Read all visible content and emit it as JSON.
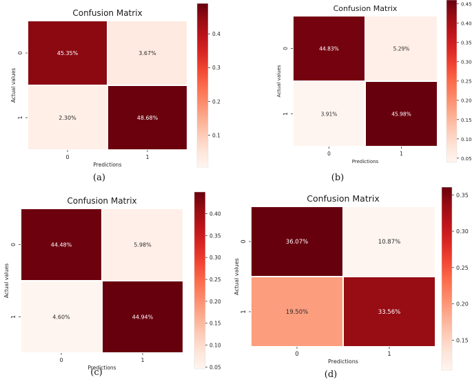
{
  "figure": {
    "caption_labels": [
      "(a)",
      "(b)",
      "(c)",
      "(d)"
    ]
  },
  "chart_data": [
    {
      "type": "heatmap",
      "title": "Confusion Matrix",
      "xlabel": "Predictions",
      "ylabel": "Actual values",
      "x_categories": [
        "0",
        "1"
      ],
      "y_categories": [
        "0",
        "1"
      ],
      "values": [
        [
          0.4535,
          0.0367
        ],
        [
          0.023,
          0.4868
        ]
      ],
      "cell_labels": [
        [
          "45.35%",
          "3.67%"
        ],
        [
          "2.30%",
          "48.68%"
        ]
      ],
      "colorbar": {
        "ticks": [
          0.1,
          0.2,
          0.3,
          0.4
        ],
        "tick_labels": [
          "0.1",
          "0.2",
          "0.3",
          "0.4"
        ],
        "range": [
          0.005,
          0.49
        ]
      },
      "colormap": "Reds",
      "caption": "(a)"
    },
    {
      "type": "heatmap",
      "title": "Confusion Matrix",
      "xlabel": "Predictions",
      "ylabel": "Actual values",
      "x_categories": [
        "0",
        "1"
      ],
      "y_categories": [
        "0",
        "1"
      ],
      "values": [
        [
          0.4483,
          0.0529
        ],
        [
          0.0391,
          0.4598
        ]
      ],
      "cell_labels": [
        [
          "44.83%",
          "5.29%"
        ],
        [
          "3.91%",
          "45.98%"
        ]
      ],
      "colorbar": {
        "ticks": [
          0.05,
          0.1,
          0.15,
          0.2,
          0.25,
          0.3,
          0.35,
          0.4,
          0.45
        ],
        "tick_labels": [
          "0.05",
          "0.10",
          "0.15",
          "0.20",
          "0.25",
          "0.30",
          "0.35",
          "0.40",
          "0.45"
        ],
        "range": [
          0.039,
          0.46
        ]
      },
      "colormap": "Reds",
      "caption": "(b)"
    },
    {
      "type": "heatmap",
      "title": "Confusion Matrix",
      "xlabel": "Predictions",
      "ylabel": "Actual values",
      "x_categories": [
        "0",
        "1"
      ],
      "y_categories": [
        "0",
        "1"
      ],
      "values": [
        [
          0.4448,
          0.0598
        ],
        [
          0.046,
          0.4494
        ]
      ],
      "cell_labels": [
        [
          "44.48%",
          "5.98%"
        ],
        [
          "4.60%",
          "44.94%"
        ]
      ],
      "colorbar": {
        "ticks": [
          0.05,
          0.1,
          0.15,
          0.2,
          0.25,
          0.3,
          0.35,
          0.4
        ],
        "tick_labels": [
          "0.05",
          "0.10",
          "0.15",
          "0.20",
          "0.25",
          "0.30",
          "0.35",
          "0.40"
        ],
        "range": [
          0.046,
          0.4494
        ]
      },
      "colormap": "Reds",
      "caption": "(c)"
    },
    {
      "type": "heatmap",
      "title": "Confusion Matrix",
      "xlabel": "Predictions",
      "ylabel": "Actual values",
      "x_categories": [
        "0",
        "1"
      ],
      "y_categories": [
        "0",
        "1"
      ],
      "values": [
        [
          0.3607,
          0.1087
        ],
        [
          0.195,
          0.3356
        ]
      ],
      "cell_labels": [
        [
          "36.07%",
          "10.87%"
        ],
        [
          "19.50%",
          "33.56%"
        ]
      ],
      "colorbar": {
        "ticks": [
          0.15,
          0.2,
          0.25,
          0.3,
          0.35
        ],
        "tick_labels": [
          "0.15",
          "0.20",
          "0.25",
          "0.30",
          "0.35"
        ],
        "range": [
          0.1087,
          0.3607
        ]
      },
      "colormap": "Reds",
      "caption": "(d)"
    }
  ]
}
